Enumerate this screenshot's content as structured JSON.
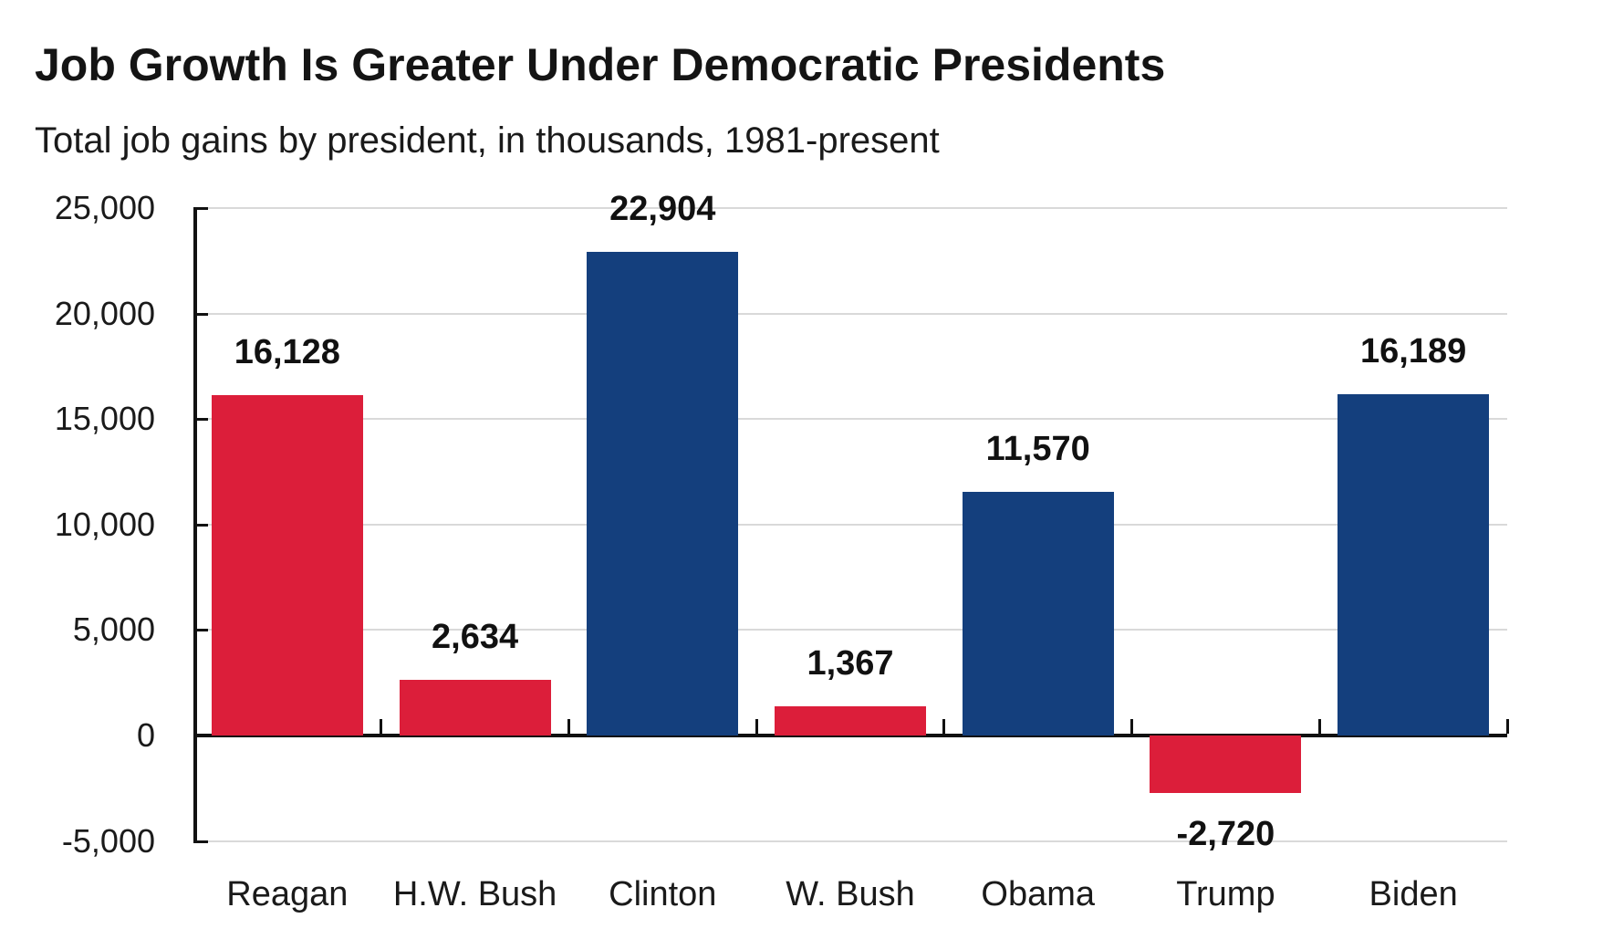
{
  "header": {
    "title": "Job Growth Is Greater Under Democratic Presidents",
    "subtitle": "Total job gains by president, in thousands, 1981-present"
  },
  "colors": {
    "democrat_blue": "#143F7D",
    "republican_red": "#DC1E3A",
    "gridline_gray": "#D9D9D9",
    "axis_black": "#111111",
    "text_black": "#1A1A1A"
  },
  "chart_data": {
    "type": "bar",
    "title": "Job Growth Is Greater Under Democratic Presidents",
    "subtitle": "Total job gains by president, in thousands, 1981-present",
    "categories": [
      "Reagan",
      "H.W. Bush",
      "Clinton",
      "W. Bush",
      "Obama",
      "Trump",
      "Biden"
    ],
    "values": [
      16128,
      2634,
      22904,
      1367,
      11570,
      -2720,
      16189
    ],
    "data_labels": [
      "16,128",
      "2,634",
      "22,904",
      "1,367",
      "11,570",
      "-2,720",
      "16,189"
    ],
    "bar_parties": [
      "republican",
      "republican",
      "democrat",
      "republican",
      "democrat",
      "republican",
      "democrat"
    ],
    "ylim": [
      -5000,
      25000
    ],
    "ytick_interval": 5000,
    "yticks": [
      25000,
      20000,
      15000,
      10000,
      5000,
      0,
      -5000
    ],
    "ytick_labels": [
      "25,000",
      "20,000",
      "15,000",
      "10,000",
      "5,000",
      "0",
      "-5,000"
    ],
    "grid": true,
    "legend": false,
    "xlabel": "",
    "ylabel": ""
  }
}
